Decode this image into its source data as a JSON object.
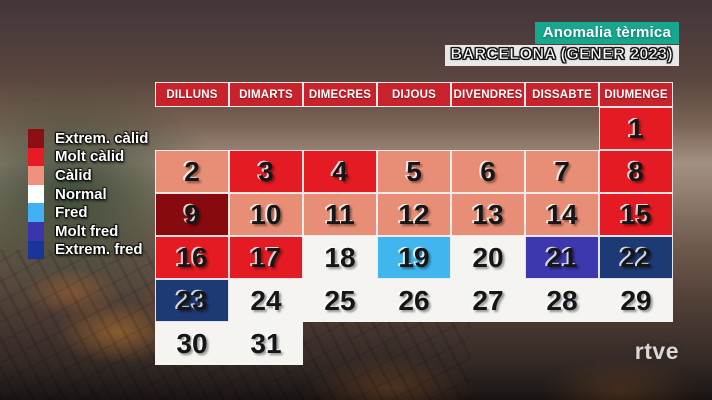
{
  "overlay": {
    "category_label": "Anomalia tèrmica",
    "location_label": "BARCELONA (GENER 2023)"
  },
  "colors": {
    "badge_teal": "#17a78e",
    "header_red": "#c8232c",
    "grid_line": "#f3f3f3"
  },
  "legend": {
    "items": [
      {
        "key": "extrem_calid",
        "label": "Extrem. càlid",
        "color": "#8e0f13"
      },
      {
        "key": "molt_calid",
        "label": "Molt càlid",
        "color": "#e61b24"
      },
      {
        "key": "calid",
        "label": "Càlid",
        "color": "#ef9180"
      },
      {
        "key": "normal",
        "label": "Normal",
        "color": "#ffffff"
      },
      {
        "key": "fred",
        "label": "Fred",
        "color": "#41b2ef"
      },
      {
        "key": "molt_fred",
        "label": "Molt fred",
        "color": "#3a34ae"
      },
      {
        "key": "extrem_fred",
        "label": "Extrem. fred",
        "color": "#19359c"
      }
    ]
  },
  "calendar": {
    "day_headers": [
      "DILLUNS",
      "DIMARTS",
      "DIMECRES",
      "DIJOUS",
      "DIVENDRES",
      "DISSABTE",
      "DIUMENGE"
    ],
    "cell_colors": {
      "extrem_calid": "#870a0e",
      "molt_calid": "#e41b22",
      "calid": "#e98e76",
      "normal": "#f5f4f1",
      "fred": "#41b6ee",
      "molt_fred": "#3d38ae",
      "extrem_fred": "#1e3a74"
    },
    "weeks": [
      [
        null,
        null,
        null,
        null,
        null,
        null,
        {
          "day": 1,
          "category": "molt_calid"
        }
      ],
      [
        {
          "day": 2,
          "category": "calid"
        },
        {
          "day": 3,
          "category": "molt_calid"
        },
        {
          "day": 4,
          "category": "molt_calid"
        },
        {
          "day": 5,
          "category": "calid"
        },
        {
          "day": 6,
          "category": "calid"
        },
        {
          "day": 7,
          "category": "calid"
        },
        {
          "day": 8,
          "category": "molt_calid"
        }
      ],
      [
        {
          "day": 9,
          "category": "extrem_calid"
        },
        {
          "day": 10,
          "category": "calid"
        },
        {
          "day": 11,
          "category": "calid"
        },
        {
          "day": 12,
          "category": "calid"
        },
        {
          "day": 13,
          "category": "calid"
        },
        {
          "day": 14,
          "category": "calid"
        },
        {
          "day": 15,
          "category": "molt_calid"
        }
      ],
      [
        {
          "day": 16,
          "category": "molt_calid"
        },
        {
          "day": 17,
          "category": "molt_calid"
        },
        {
          "day": 18,
          "category": "normal"
        },
        {
          "day": 19,
          "category": "fred"
        },
        {
          "day": 20,
          "category": "normal"
        },
        {
          "day": 21,
          "category": "molt_fred"
        },
        {
          "day": 22,
          "category": "extrem_fred"
        }
      ],
      [
        {
          "day": 23,
          "category": "extrem_fred"
        },
        {
          "day": 24,
          "category": "normal"
        },
        {
          "day": 25,
          "category": "normal"
        },
        {
          "day": 26,
          "category": "normal"
        },
        {
          "day": 27,
          "category": "normal"
        },
        {
          "day": 28,
          "category": "normal"
        },
        {
          "day": 29,
          "category": "normal"
        }
      ],
      [
        {
          "day": 30,
          "category": "normal"
        },
        {
          "day": 31,
          "category": "normal"
        },
        null,
        null,
        null,
        null,
        null
      ]
    ]
  },
  "watermark": "rtve",
  "chart_data": {
    "type": "heatmap",
    "title": "Anomalia tèrmica",
    "subtitle": "BARCELONA (GENER 2023)",
    "weekday_labels": [
      "DILLUNS",
      "DIMARTS",
      "DIMECRES",
      "DIJOUS",
      "DIVENDRES",
      "DISSABTE",
      "DIUMENGE"
    ],
    "categories": [
      "Extrem. càlid",
      "Molt càlid",
      "Càlid",
      "Normal",
      "Fred",
      "Molt fred",
      "Extrem. fred"
    ],
    "legend_position": "left",
    "day_categories": {
      "1": "Molt càlid",
      "2": "Càlid",
      "3": "Molt càlid",
      "4": "Molt càlid",
      "5": "Càlid",
      "6": "Càlid",
      "7": "Càlid",
      "8": "Molt càlid",
      "9": "Extrem. càlid",
      "10": "Càlid",
      "11": "Càlid",
      "12": "Càlid",
      "13": "Càlid",
      "14": "Càlid",
      "15": "Molt càlid",
      "16": "Molt càlid",
      "17": "Molt càlid",
      "18": "Normal",
      "19": "Fred",
      "20": "Normal",
      "21": "Molt fred",
      "22": "Extrem. fred",
      "23": "Extrem. fred",
      "24": "Normal",
      "25": "Normal",
      "26": "Normal",
      "27": "Normal",
      "28": "Normal",
      "29": "Normal",
      "30": "Normal",
      "31": "Normal"
    }
  }
}
